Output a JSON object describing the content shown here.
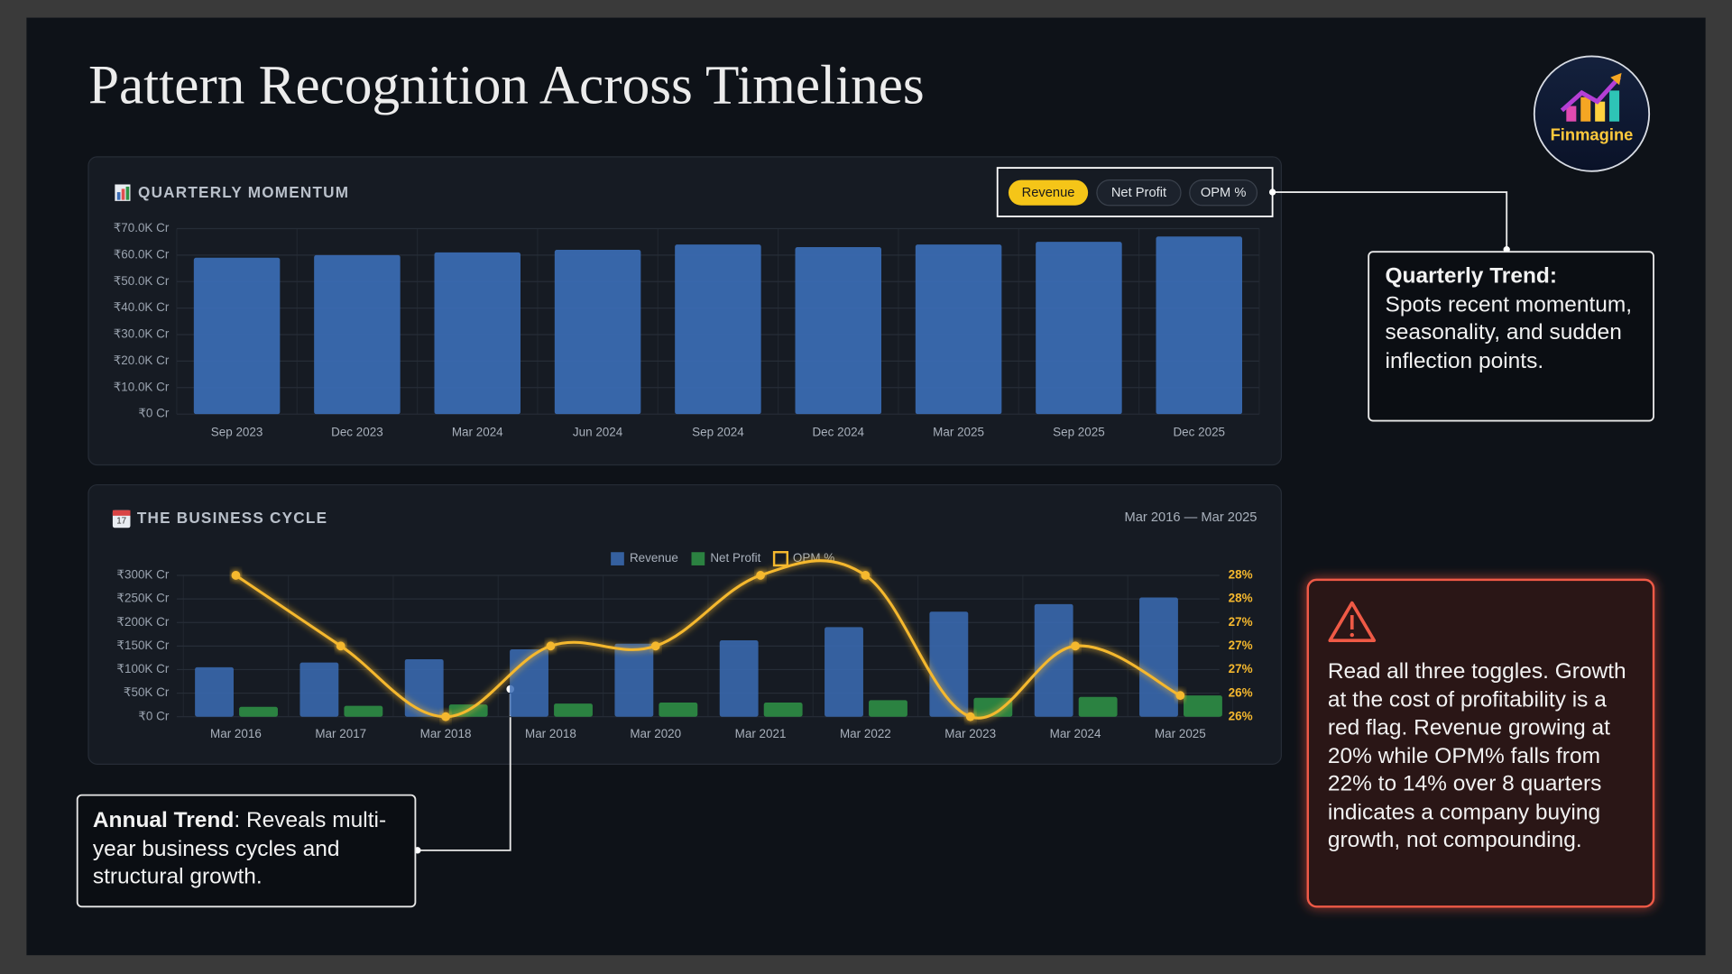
{
  "title": "Pattern Recognition Across Timelines",
  "logo": "Finmagine",
  "chart_data": [
    {
      "type": "bar",
      "title": "QUARTERLY MOMENTUM",
      "toggles": [
        "Revenue",
        "Net Profit",
        "OPM %"
      ],
      "active_toggle": 0,
      "categories": [
        "Sep 2023",
        "Dec 2023",
        "Mar 2024",
        "Jun 2024",
        "Sep 2024",
        "Dec 2024",
        "Mar 2025",
        "Sep 2025",
        "Dec 2025"
      ],
      "values": [
        59000,
        60000,
        61000,
        62000,
        64000,
        63000,
        64000,
        65000,
        67000
      ],
      "color": "#3b6cb5",
      "ylim": [
        0,
        70000
      ],
      "yticks": [
        {
          "value": 0,
          "label": "₹0 Cr"
        },
        {
          "value": 10000,
          "label": "₹10.0K Cr"
        },
        {
          "value": 20000,
          "label": "₹20.0K Cr"
        },
        {
          "value": 30000,
          "label": "₹30.0K Cr"
        },
        {
          "value": 40000,
          "label": "₹40.0K Cr"
        },
        {
          "value": 50000,
          "label": "₹50.0K Cr"
        },
        {
          "value": 60000,
          "label": "₹60.0K Cr"
        },
        {
          "value": 70000,
          "label": "₹70.0K Cr"
        }
      ],
      "grid": true
    },
    {
      "type": "combo",
      "title": "THE BUSINESS CYCLE",
      "date_range": "Mar 2016 — Mar 2025",
      "categories": [
        "Mar 2016",
        "Mar 2017",
        "Mar 2018",
        "Mar 2018",
        "Mar 2020",
        "Mar 2021",
        "Mar 2022",
        "Mar 2023",
        "Mar 2024",
        "Mar 2025"
      ],
      "series": [
        {
          "name": "Revenue",
          "type": "bar",
          "color": "#3b6cb5",
          "values": [
            105000,
            115000,
            122000,
            143000,
            155000,
            162000,
            190000,
            223000,
            239000,
            253000
          ]
        },
        {
          "name": "Net Profit",
          "type": "bar",
          "color": "#2f9446",
          "values": [
            21000,
            23000,
            26000,
            28000,
            30000,
            30000,
            35000,
            40000,
            42000,
            45000
          ]
        },
        {
          "name": "OPM %",
          "type": "line",
          "axis": "y2",
          "color": "#f5b82e",
          "values": [
            28,
            27,
            26,
            27,
            27,
            28,
            28,
            26,
            27,
            26.3
          ]
        }
      ],
      "ylim": [
        0,
        300000
      ],
      "yticks": [
        {
          "value": 0,
          "label": "₹0 Cr"
        },
        {
          "value": 50000,
          "label": "₹50K Cr"
        },
        {
          "value": 100000,
          "label": "₹100K Cr"
        },
        {
          "value": 150000,
          "label": "₹150K Cr"
        },
        {
          "value": 200000,
          "label": "₹200K Cr"
        },
        {
          "value": 250000,
          "label": "₹250K Cr"
        },
        {
          "value": 300000,
          "label": "₹300K Cr"
        }
      ],
      "y2lim": [
        26,
        28
      ],
      "y2ticks": [
        {
          "value": 26,
          "label": "26%"
        },
        {
          "value": 26.33,
          "label": "26%"
        },
        {
          "value": 26.67,
          "label": "27%"
        },
        {
          "value": 27,
          "label": "27%"
        },
        {
          "value": 27.33,
          "label": "27%"
        },
        {
          "value": 27.67,
          "label": "28%"
        },
        {
          "value": 28,
          "label": "28%"
        }
      ],
      "grid": true,
      "legend": "top"
    }
  ],
  "callouts": {
    "quarterly": {
      "heading": "Quarterly Trend:",
      "text": "Spots recent momentum, seasonality, and sudden inflection points."
    },
    "annual": {
      "heading": "Annual Trend",
      "text": ": Reveals multi-year business cycles and structural growth."
    },
    "warning": {
      "text": "Read all three toggles. Growth at the cost of profitability is a red flag. Revenue growing at 20% while OPM% falls from 22% to 14% over 8 quarters indicates a company buying growth, not compounding."
    }
  }
}
